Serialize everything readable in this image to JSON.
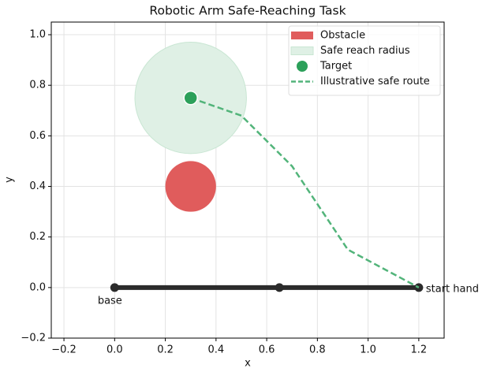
{
  "chart_data": {
    "type": "arm",
    "title": "Robotic Arm Safe-Reaching Task",
    "xlabel": "x",
    "ylabel": "y",
    "xlim": [
      -0.25,
      1.3
    ],
    "ylim": [
      -0.2,
      1.05
    ],
    "xticks": [
      {
        "value": -0.2,
        "label": "−0.2"
      },
      {
        "value": 0,
        "label": "0.0"
      },
      0.2,
      0.4,
      0.6,
      0.8,
      {
        "value": 1,
        "label": "1.0"
      },
      1.2
    ],
    "yticks": [
      {
        "value": -0.2,
        "label": "−0.2"
      },
      {
        "value": 0,
        "label": "0.0"
      },
      0.2,
      0.4,
      0.6,
      0.8,
      {
        "value": 1,
        "label": "1.0"
      }
    ],
    "grid": true,
    "legend": "upper right",
    "obstacle": {
      "name": "Obstacle",
      "x": 0.3,
      "y": 0.4,
      "r": 0.1,
      "color": "#e05c5c"
    },
    "safe": {
      "name": "Safe reach radius",
      "x": 0.3,
      "y": 0.75,
      "r": 0.22,
      "color": "#dff0e5"
    },
    "target": {
      "name": "Target",
      "x": 0.3,
      "y": 0.75,
      "color": "#2ca05a"
    },
    "route": {
      "name": "Illustrative safe route",
      "x": [
        0.3,
        0.5,
        0.7,
        0.92,
        1.2
      ],
      "y": [
        0.75,
        0.68,
        0.48,
        0.15,
        0
      ],
      "color": "#52b47a"
    },
    "arm": {
      "x": [
        0,
        0.65,
        1.2
      ],
      "y": [
        0,
        0,
        0
      ],
      "color": "#2b2b2b"
    },
    "annotations": [
      {
        "text": "base",
        "x": 0,
        "y": 0
      },
      {
        "text": "start hand",
        "x": 1.2,
        "y": 0
      }
    ]
  }
}
